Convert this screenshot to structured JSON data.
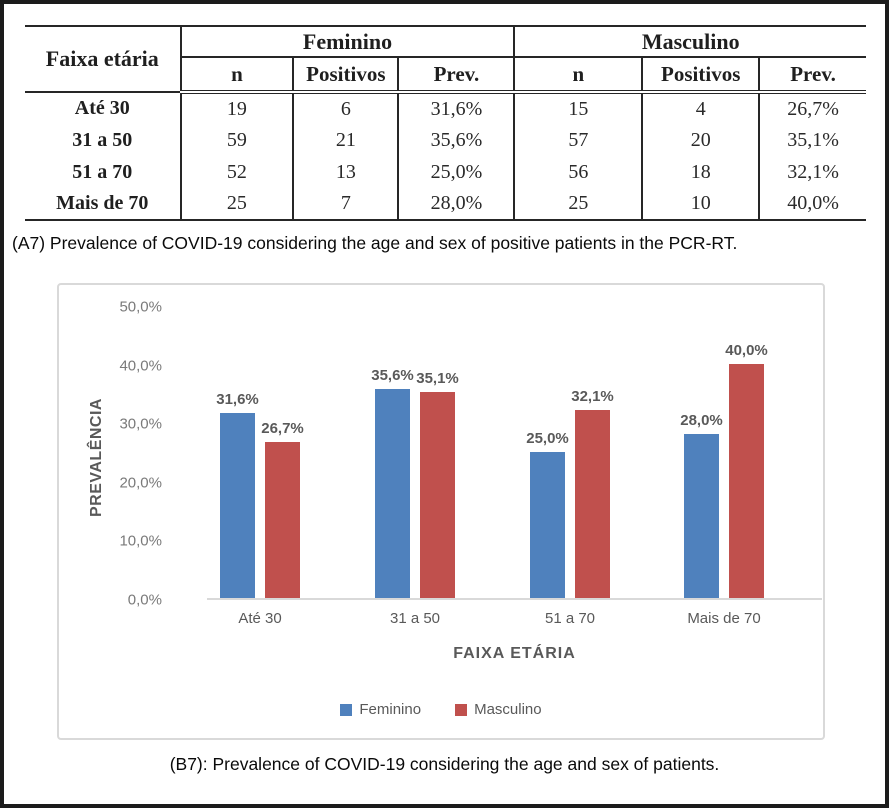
{
  "table": {
    "col_header_left": "Faixa etária",
    "group_headers": [
      "Feminino",
      "Masculino"
    ],
    "sub_headers": [
      "n",
      "Positivos",
      "Prev."
    ],
    "rows": [
      {
        "label": "Até 30",
        "f_n": "19",
        "f_pos": "6",
        "f_prev": "31,6%",
        "m_n": "15",
        "m_pos": "4",
        "m_prev": "26,7%"
      },
      {
        "label": "31 a 50",
        "f_n": "59",
        "f_pos": "21",
        "f_prev": "35,6%",
        "m_n": "57",
        "m_pos": "20",
        "m_prev": "35,1%"
      },
      {
        "label": "51 a 70",
        "f_n": "52",
        "f_pos": "13",
        "f_prev": "25,0%",
        "m_n": "56",
        "m_pos": "18",
        "m_prev": "32,1%"
      },
      {
        "label": "Mais de 70",
        "f_n": "25",
        "f_pos": "7",
        "f_prev": "28,0%",
        "m_n": "25",
        "m_pos": "10",
        "m_prev": "40,0%"
      }
    ]
  },
  "caption_a": "(A7) Prevalence of COVID-19 considering the age and sex of positive patients in the PCR-RT.",
  "caption_b": "(B7): Prevalence of COVID-19 considering the age and sex of patients.",
  "chart_data": {
    "type": "bar",
    "title": "",
    "categories": [
      "Até 30",
      "31 a 50",
      "51 a 70",
      "Mais de 70"
    ],
    "series": [
      {
        "name": "Feminino",
        "values": [
          31.6,
          35.6,
          25.0,
          28.0
        ],
        "display": [
          "31,6%",
          "35,6%",
          "25,0%",
          "28,0%"
        ],
        "color": "#4F81BD"
      },
      {
        "name": "Masculino",
        "values": [
          26.7,
          35.1,
          32.1,
          40.0
        ],
        "display": [
          "26,7%",
          "35,1%",
          "32,1%",
          "40,0%"
        ],
        "color": "#C0504D"
      }
    ],
    "xlabel": "FAIXA ETÁRIA",
    "ylabel": "PREVALÊNCIA",
    "yticks": [
      "0,0%",
      "10,0%",
      "20,0%",
      "30,0%",
      "40,0%",
      "50,0%"
    ],
    "ylim": [
      0,
      50
    ],
    "grid": false,
    "legend_position": "bottom"
  },
  "colors": {
    "feminino": "#4F81BD",
    "masculino": "#C0504D",
    "axis_text": "#595959",
    "tick_text": "#7A7A7A",
    "chart_border": "#D9D9D9",
    "table_border": "#262626"
  }
}
